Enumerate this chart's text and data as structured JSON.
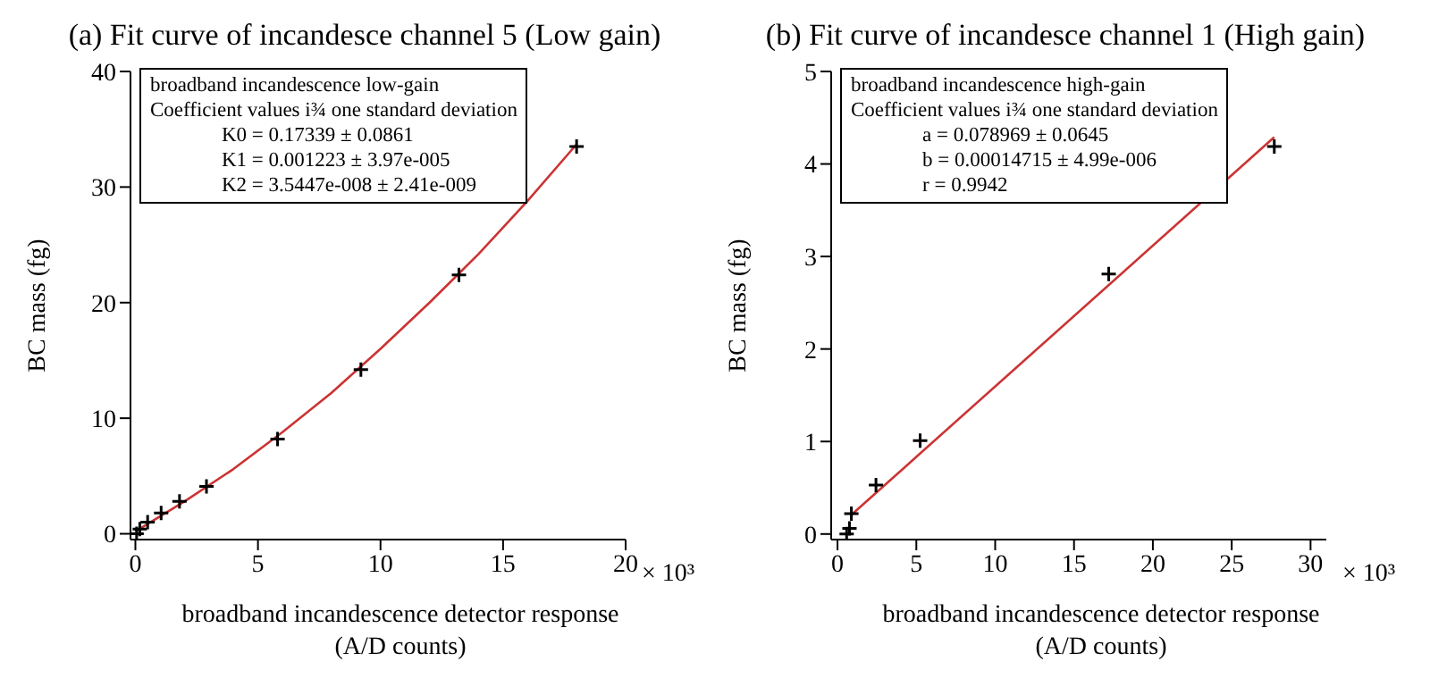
{
  "chart_data": [
    {
      "type": "scatter",
      "title": "(a) Fit curve of incandesce channel 5 (Low gain)",
      "xlabel": "broadband incandescence detector response\n(A/D counts)",
      "ylabel": "BC mass (fg)",
      "annotations": [
        "broadband incandescence low-gain",
        "Coefficient values i¾ one standard deviation",
        "K0 = 0.17339 ± 0.0861",
        "K1 = 0.001223 ± 3.97e-005",
        "K2 = 3.5447e-008 ± 2.41e-009",
        "× 10³"
      ],
      "xlim": [
        -0.2,
        20
      ],
      "xticks": [
        0,
        5,
        10,
        15,
        20
      ],
      "ylim": [
        -0.5,
        40
      ],
      "yticks": [
        0,
        10,
        20,
        30,
        40
      ],
      "series": [
        {
          "marker": "cross",
          "color": "#000000",
          "x": [
            0.05,
            0.18,
            0.5,
            1.05,
            1.8,
            2.9,
            5.8,
            9.2,
            13.2,
            18.0
          ],
          "values": [
            0.0,
            0.4,
            1.0,
            1.8,
            2.8,
            4.1,
            8.2,
            14.2,
            22.4,
            33.5
          ]
        },
        {
          "type": "line",
          "marker": "none",
          "color": "#cc3333",
          "x": [
            0,
            2,
            4,
            6,
            8,
            10,
            12,
            14,
            16,
            18
          ],
          "values": [
            0.2,
            2.8,
            5.6,
            8.8,
            12.2,
            16.0,
            20.0,
            24.2,
            28.8,
            33.7
          ]
        }
      ]
    },
    {
      "type": "scatter",
      "title": "(b) Fit curve of incandesce channel 1 (High gain)",
      "xlabel": "broadband incandescence detector response\n(A/D counts)",
      "ylabel": "BC mass (fg)",
      "annotations": [
        "broadband incandescence high-gain",
        "Coefficient values i¾ one standard deviation",
        "a = 0.078969 ± 0.0645",
        "b = 0.00014715 ± 4.99e-006",
        "r = 0.9942",
        "× 10³"
      ],
      "xlim": [
        -0.4,
        31
      ],
      "xticks": [
        0,
        5,
        10,
        15,
        20,
        25,
        30
      ],
      "ylim": [
        -0.06,
        5
      ],
      "yticks": [
        0,
        1,
        2,
        3,
        4,
        5
      ],
      "series": [
        {
          "marker": "cross",
          "color": "#000000",
          "x": [
            0.58,
            0.76,
            0.88,
            2.44,
            5.24,
            17.2,
            27.7
          ],
          "values": [
            0.0,
            0.06,
            0.22,
            0.53,
            1.01,
            2.81,
            4.19
          ]
        },
        {
          "type": "line",
          "marker": "none",
          "color": "#cc3333",
          "x": [
            0.9,
            27.7
          ],
          "values": [
            0.21,
            4.29
          ]
        }
      ]
    }
  ]
}
